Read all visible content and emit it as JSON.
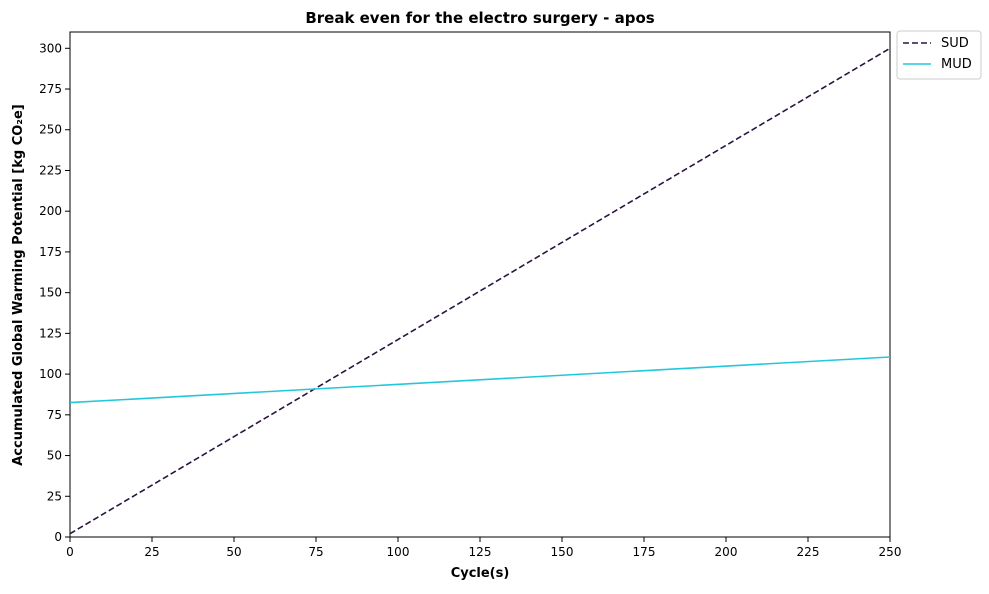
{
  "chart_data": {
    "type": "line",
    "title": "Break even for the electro surgery - apos",
    "xlabel": "Cycle(s)",
    "ylabel": "Accumulated Global Warming Potential [kg CO₂e]",
    "xlim": [
      0,
      250
    ],
    "ylim": [
      0,
      310
    ],
    "xticks": [
      0,
      25,
      50,
      75,
      100,
      125,
      150,
      175,
      200,
      225,
      250
    ],
    "yticks": [
      0,
      25,
      50,
      75,
      100,
      125,
      150,
      175,
      200,
      225,
      250,
      275,
      300
    ],
    "grid": false,
    "legend_position": "outside-top-right",
    "series": [
      {
        "name": "SUD",
        "color": "#2a1540",
        "style": "dashed",
        "x": [
          0,
          250
        ],
        "y": [
          2,
          300
        ]
      },
      {
        "name": "MUD",
        "color": "#22c7dc",
        "style": "solid",
        "x": [
          0,
          250
        ],
        "y": [
          82.5,
          110.5
        ]
      }
    ]
  }
}
